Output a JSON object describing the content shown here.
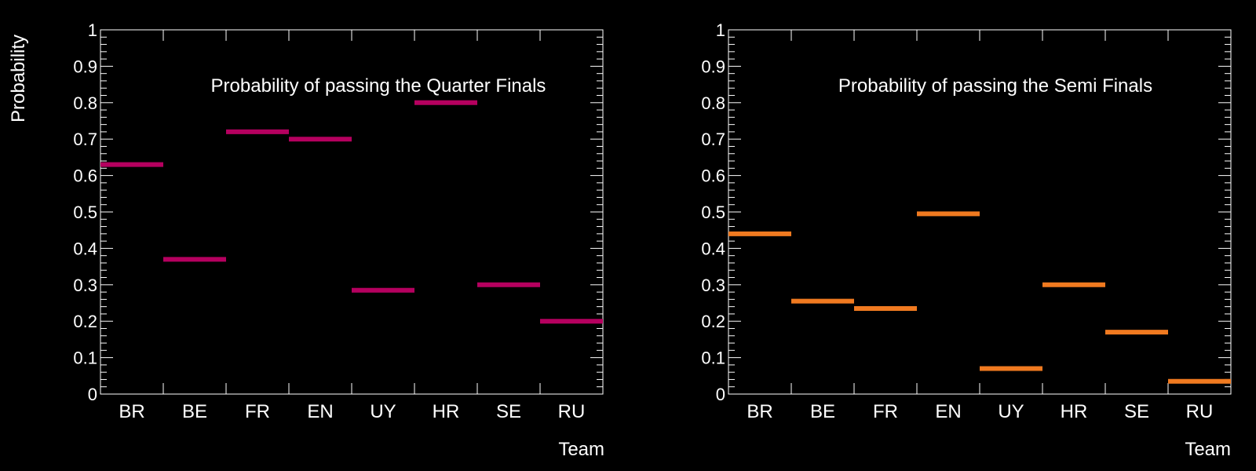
{
  "chart_data": [
    {
      "type": "bar",
      "style": "horizontal-line-markers",
      "title": "Probability of passing the Quarter Finals",
      "xlabel": "Team",
      "ylabel": "Probability",
      "categories": [
        "BR",
        "BE",
        "FR",
        "EN",
        "UY",
        "HR",
        "SE",
        "RU"
      ],
      "values": [
        0.63,
        0.37,
        0.72,
        0.7,
        0.285,
        0.8,
        0.3,
        0.2
      ],
      "ylim": [
        0,
        1
      ],
      "yticks": [
        "0",
        "0.1",
        "0.2",
        "0.3",
        "0.4",
        "0.5",
        "0.6",
        "0.7",
        "0.8",
        "0.9",
        "1"
      ],
      "color": "#b5005f"
    },
    {
      "type": "bar",
      "style": "horizontal-line-markers",
      "title": "Probability of passing the Semi Finals",
      "xlabel": "Team",
      "ylabel": "",
      "categories": [
        "BR",
        "BE",
        "FR",
        "EN",
        "UY",
        "HR",
        "SE",
        "RU"
      ],
      "values": [
        0.44,
        0.255,
        0.235,
        0.495,
        0.07,
        0.3,
        0.17,
        0.035
      ],
      "ylim": [
        0,
        1
      ],
      "yticks": [
        "0",
        "0.1",
        "0.2",
        "0.3",
        "0.4",
        "0.5",
        "0.6",
        "0.7",
        "0.8",
        "0.9",
        "1"
      ],
      "color": "#f07a20"
    }
  ]
}
